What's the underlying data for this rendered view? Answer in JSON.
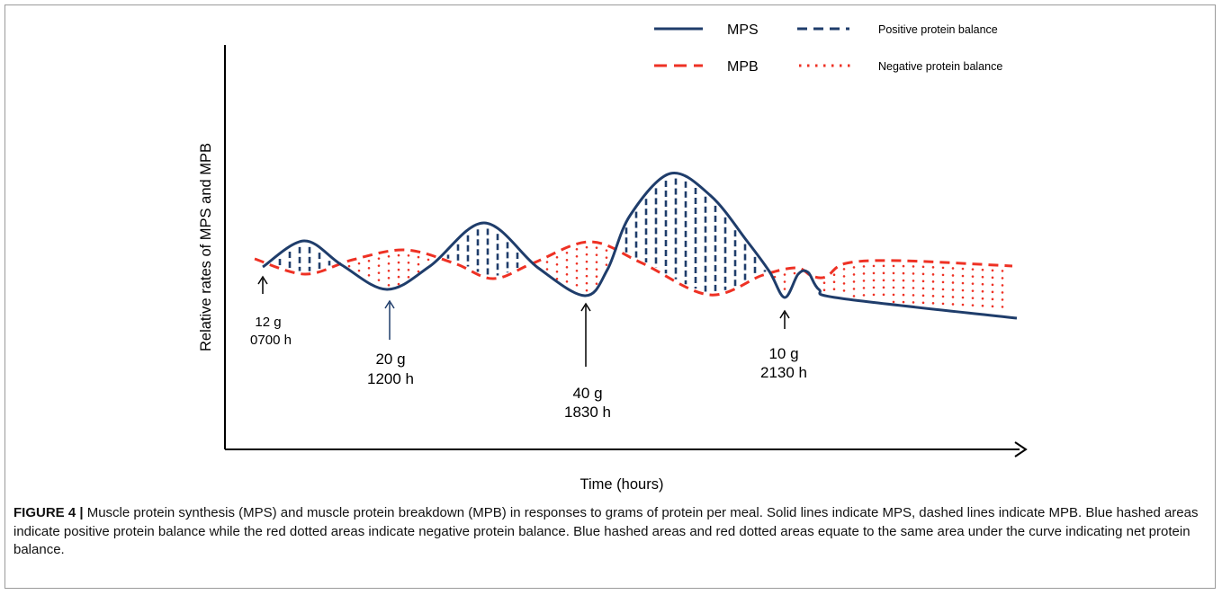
{
  "chart_data": {
    "type": "line",
    "title": "",
    "xlabel": "Time (hours)",
    "ylabel": "Relative rates of MPS and MPB",
    "grid": false,
    "legend_placement": "top-right",
    "colors": {
      "mps": "#1f3d6b",
      "mpb": "#ee3124",
      "axis": "#000000"
    },
    "legend": [
      {
        "label": "MPS",
        "style": "solid",
        "color": "#1f3d6b"
      },
      {
        "label": "Positive protein balance",
        "style": "dashed",
        "color": "#1f3d6b"
      },
      {
        "label": "MPB",
        "style": "dashed",
        "color": "#ee3124"
      },
      {
        "label": "Negative protein balance",
        "style": "dotted",
        "color": "#ee3124"
      }
    ],
    "series": [
      {
        "name": "MPS",
        "style": "solid"
      },
      {
        "name": "MPB",
        "style": "dashed"
      }
    ],
    "annotations": [
      {
        "amount": "12 g",
        "time": "0700 h"
      },
      {
        "amount": "20 g",
        "time": "1200 h"
      },
      {
        "amount": "40 g",
        "time": "1830 h"
      },
      {
        "amount": "10 g",
        "time": "2130 h"
      }
    ]
  },
  "caption": {
    "label": "FIGURE 4 |",
    "text": "Muscle protein synthesis (MPS) and muscle protein breakdown (MPB) in responses to grams of protein per meal. Solid lines indicate MPS, dashed lines indicate MPB. Blue hashed areas indicate positive protein balance while the red dotted areas indicate negative protein balance. Blue hashed areas and red dotted areas equate to the same area under the curve indicating net protein balance."
  }
}
